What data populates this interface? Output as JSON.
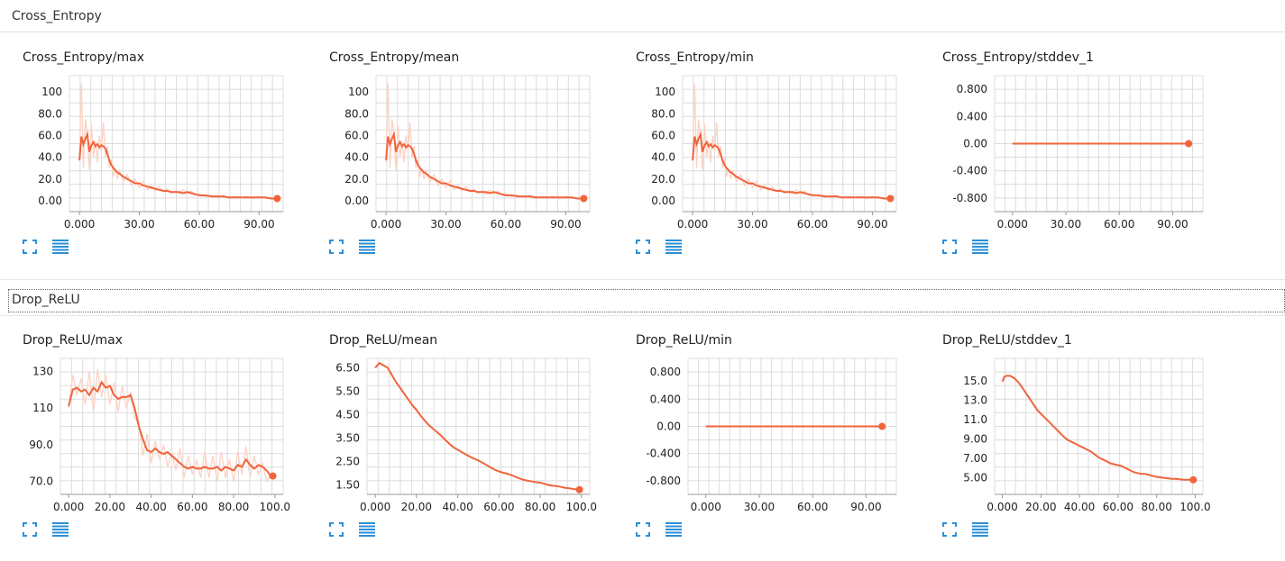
{
  "sections": [
    {
      "name": "Cross_Entropy",
      "cards": [
        {
          "title": "Cross_Entropy/max"
        },
        {
          "title": "Cross_Entropy/mean"
        },
        {
          "title": "Cross_Entropy/min"
        },
        {
          "title": "Cross_Entropy/stddev_1"
        }
      ]
    },
    {
      "name": "Drop_ReLU",
      "cards": [
        {
          "title": "Drop_ReLU/max"
        },
        {
          "title": "Drop_ReLU/mean"
        },
        {
          "title": "Drop_ReLU/min"
        },
        {
          "title": "Drop_ReLU/stddev_1"
        }
      ]
    }
  ],
  "colors": {
    "line": "#f0643c",
    "raw": "#fcd2c3",
    "grid": "#dcdcdc",
    "icon": "#2b8fd6"
  },
  "icons": {
    "expand": "fullscreen-icon",
    "data": "data-table-icon"
  },
  "chart_data": [
    {
      "type": "line",
      "title": "Cross_Entropy/max",
      "xlim": [
        -5,
        102
      ],
      "ylim": [
        -10,
        115
      ],
      "xticks": [
        "0.000",
        "30.00",
        "60.00",
        "90.00"
      ],
      "xtick_values": [
        0,
        30,
        60,
        90
      ],
      "yticks": [
        "100",
        "80.0",
        "60.0",
        "40.0",
        "20.0",
        "0.00"
      ],
      "ytick_values": [
        100,
        80,
        60,
        40,
        20,
        0
      ],
      "x": [
        0,
        1,
        2,
        3,
        4,
        5,
        6,
        7,
        8,
        9,
        10,
        11,
        12,
        13,
        14,
        15,
        16,
        17,
        18,
        19,
        20,
        22,
        24,
        26,
        28,
        30,
        32,
        34,
        36,
        38,
        40,
        42,
        44,
        46,
        48,
        50,
        52,
        54,
        56,
        58,
        60,
        63,
        66,
        69,
        72,
        75,
        78,
        81,
        84,
        87,
        90,
        93,
        96,
        99
      ],
      "y": [
        37,
        59,
        52,
        57,
        61,
        45,
        51,
        54,
        50,
        52,
        49,
        51,
        50,
        48,
        43,
        37,
        33,
        30,
        28,
        26,
        25,
        22,
        20,
        18,
        16,
        16,
        14,
        13,
        12,
        11,
        10,
        9,
        9,
        8,
        8,
        8,
        7,
        8,
        7,
        6,
        5,
        5,
        4,
        4,
        4,
        3,
        3,
        3,
        3,
        3,
        3,
        3,
        2,
        2
      ],
      "raw_y": [
        37,
        108,
        30,
        75,
        60,
        28,
        70,
        40,
        55,
        35,
        60,
        45,
        72,
        40,
        50,
        30,
        38,
        22,
        30,
        20,
        28,
        18,
        24,
        14,
        20,
        12,
        18,
        10,
        14,
        9,
        13,
        8,
        11,
        7,
        9,
        6,
        10,
        7,
        9,
        5,
        6,
        4,
        5,
        3,
        5,
        2,
        4,
        3,
        4,
        2,
        4,
        2,
        3,
        2
      ]
    },
    {
      "type": "line",
      "title": "Cross_Entropy/mean",
      "xlim": [
        -5,
        102
      ],
      "ylim": [
        -10,
        115
      ],
      "xticks": [
        "0.000",
        "30.00",
        "60.00",
        "90.00"
      ],
      "xtick_values": [
        0,
        30,
        60,
        90
      ],
      "yticks": [
        "100",
        "80.0",
        "60.0",
        "40.0",
        "20.0",
        "0.00"
      ],
      "ytick_values": [
        100,
        80,
        60,
        40,
        20,
        0
      ],
      "x": [
        0,
        1,
        2,
        3,
        4,
        5,
        6,
        7,
        8,
        9,
        10,
        11,
        12,
        13,
        14,
        15,
        16,
        17,
        18,
        19,
        20,
        22,
        24,
        26,
        28,
        30,
        32,
        34,
        36,
        38,
        40,
        42,
        44,
        46,
        48,
        50,
        52,
        54,
        56,
        58,
        60,
        63,
        66,
        69,
        72,
        75,
        78,
        81,
        84,
        87,
        90,
        93,
        96,
        99
      ],
      "y": [
        37,
        59,
        52,
        57,
        61,
        45,
        51,
        54,
        50,
        52,
        49,
        51,
        50,
        48,
        43,
        37,
        33,
        30,
        28,
        26,
        25,
        22,
        20,
        18,
        16,
        16,
        14,
        13,
        12,
        11,
        10,
        9,
        9,
        8,
        8,
        8,
        7,
        8,
        7,
        6,
        5,
        5,
        4,
        4,
        4,
        3,
        3,
        3,
        3,
        3,
        3,
        3,
        2,
        2
      ],
      "raw_y": [
        37,
        108,
        30,
        75,
        60,
        28,
        70,
        40,
        55,
        35,
        60,
        45,
        72,
        40,
        50,
        30,
        38,
        22,
        30,
        20,
        28,
        18,
        24,
        14,
        20,
        12,
        18,
        10,
        14,
        9,
        13,
        8,
        11,
        7,
        9,
        6,
        10,
        7,
        9,
        5,
        6,
        4,
        5,
        3,
        5,
        2,
        4,
        3,
        4,
        2,
        4,
        2,
        3,
        2
      ]
    },
    {
      "type": "line",
      "title": "Cross_Entropy/min",
      "xlim": [
        -5,
        102
      ],
      "ylim": [
        -10,
        115
      ],
      "xticks": [
        "0.000",
        "30.00",
        "60.00",
        "90.00"
      ],
      "xtick_values": [
        0,
        30,
        60,
        90
      ],
      "yticks": [
        "100",
        "80.0",
        "60.0",
        "40.0",
        "20.0",
        "0.00"
      ],
      "ytick_values": [
        100,
        80,
        60,
        40,
        20,
        0
      ],
      "x": [
        0,
        1,
        2,
        3,
        4,
        5,
        6,
        7,
        8,
        9,
        10,
        11,
        12,
        13,
        14,
        15,
        16,
        17,
        18,
        19,
        20,
        22,
        24,
        26,
        28,
        30,
        32,
        34,
        36,
        38,
        40,
        42,
        44,
        46,
        48,
        50,
        52,
        54,
        56,
        58,
        60,
        63,
        66,
        69,
        72,
        75,
        78,
        81,
        84,
        87,
        90,
        93,
        96,
        99
      ],
      "y": [
        37,
        59,
        52,
        57,
        61,
        45,
        51,
        54,
        50,
        52,
        49,
        51,
        50,
        48,
        43,
        37,
        33,
        30,
        28,
        26,
        25,
        22,
        20,
        18,
        16,
        16,
        14,
        13,
        12,
        11,
        10,
        9,
        9,
        8,
        8,
        8,
        7,
        8,
        7,
        6,
        5,
        5,
        4,
        4,
        4,
        3,
        3,
        3,
        3,
        3,
        3,
        3,
        2,
        2
      ],
      "raw_y": [
        37,
        108,
        30,
        75,
        60,
        28,
        70,
        40,
        55,
        35,
        60,
        45,
        72,
        40,
        50,
        30,
        38,
        22,
        30,
        20,
        28,
        18,
        24,
        14,
        20,
        12,
        18,
        10,
        14,
        9,
        13,
        8,
        11,
        7,
        9,
        6,
        10,
        7,
        9,
        5,
        6,
        4,
        5,
        3,
        5,
        2,
        4,
        3,
        4,
        2,
        4,
        2,
        3,
        2
      ]
    },
    {
      "type": "line",
      "title": "Cross_Entropy/stddev_1",
      "xlim": [
        -10,
        107
      ],
      "ylim": [
        -1,
        1
      ],
      "xticks": [
        "0.000",
        "30.00",
        "60.00",
        "90.00"
      ],
      "xtick_values": [
        0,
        30,
        60,
        90
      ],
      "yticks": [
        "0.800",
        "0.400",
        "0.00",
        "-0.400",
        "-0.800"
      ],
      "ytick_values": [
        0.8,
        0.4,
        0,
        -0.4,
        -0.8
      ],
      "x": [
        0,
        99
      ],
      "y": [
        0,
        0
      ],
      "raw_y": [
        0,
        0
      ]
    },
    {
      "type": "line",
      "title": "Drop_ReLU/max",
      "xlim": [
        -4,
        104
      ],
      "ylim": [
        63,
        137
      ],
      "xticks": [
        "0.000",
        "20.00",
        "40.00",
        "60.00",
        "80.00",
        "100.0"
      ],
      "xtick_values": [
        0,
        20,
        40,
        60,
        80,
        100
      ],
      "yticks": [
        "130",
        "110",
        "90.0",
        "70.0"
      ],
      "ytick_values": [
        130,
        110,
        90,
        70
      ],
      "x": [
        0,
        2,
        4,
        6,
        8,
        10,
        12,
        14,
        16,
        18,
        20,
        22,
        24,
        26,
        28,
        30,
        32,
        34,
        36,
        38,
        40,
        42,
        44,
        46,
        48,
        50,
        52,
        54,
        56,
        58,
        60,
        62,
        64,
        66,
        68,
        70,
        72,
        74,
        76,
        78,
        80,
        82,
        84,
        86,
        88,
        90,
        92,
        94,
        96,
        98,
        99
      ],
      "y": [
        111,
        120,
        121,
        119,
        120,
        117,
        121,
        119,
        124,
        121,
        122,
        117,
        115,
        116,
        116,
        117,
        110,
        100,
        93,
        87,
        86,
        88,
        86,
        85,
        86,
        84,
        82,
        80,
        78,
        77,
        78,
        77,
        77,
        78,
        77,
        77,
        78,
        76,
        78,
        77,
        76,
        79,
        78,
        82,
        79,
        77,
        79,
        78,
        76,
        73,
        73
      ],
      "raw_y": [
        110,
        128,
        117,
        126,
        112,
        130,
        108,
        131,
        116,
        128,
        112,
        124,
        108,
        122,
        110,
        119,
        104,
        103,
        84,
        96,
        80,
        92,
        82,
        90,
        78,
        86,
        76,
        88,
        72,
        84,
        74,
        82,
        72,
        86,
        72,
        84,
        70,
        86,
        72,
        82,
        70,
        86,
        74,
        89,
        72,
        84,
        74,
        80,
        70,
        74,
        73
      ]
    },
    {
      "type": "line",
      "title": "Drop_ReLU/mean",
      "xlim": [
        -4,
        104
      ],
      "ylim": [
        1.1,
        6.9
      ],
      "xticks": [
        "0.000",
        "20.00",
        "40.00",
        "60.00",
        "80.00",
        "100.0"
      ],
      "xtick_values": [
        0,
        20,
        40,
        60,
        80,
        100
      ],
      "yticks": [
        "6.50",
        "5.50",
        "4.50",
        "3.50",
        "2.50",
        "1.50"
      ],
      "ytick_values": [
        6.5,
        5.5,
        4.5,
        3.5,
        2.5,
        1.5
      ],
      "x": [
        0,
        2,
        4,
        6,
        8,
        10,
        12,
        14,
        16,
        18,
        20,
        22,
        24,
        26,
        28,
        30,
        32,
        34,
        36,
        38,
        40,
        42,
        44,
        46,
        48,
        50,
        52,
        54,
        56,
        58,
        60,
        62,
        64,
        66,
        68,
        70,
        72,
        74,
        76,
        78,
        80,
        82,
        84,
        86,
        88,
        90,
        92,
        94,
        96,
        98,
        99
      ],
      "y": [
        6.5,
        6.7,
        6.6,
        6.5,
        6.2,
        5.9,
        5.65,
        5.4,
        5.15,
        4.9,
        4.7,
        4.45,
        4.25,
        4.05,
        3.9,
        3.75,
        3.6,
        3.42,
        3.25,
        3.1,
        3.0,
        2.9,
        2.8,
        2.7,
        2.62,
        2.55,
        2.45,
        2.35,
        2.25,
        2.15,
        2.08,
        2.02,
        1.98,
        1.92,
        1.85,
        1.78,
        1.72,
        1.68,
        1.65,
        1.62,
        1.6,
        1.55,
        1.5,
        1.47,
        1.45,
        1.42,
        1.38,
        1.36,
        1.33,
        1.31,
        1.3
      ],
      "raw_y": []
    },
    {
      "type": "line",
      "title": "Drop_ReLU/min",
      "xlim": [
        -10,
        107
      ],
      "ylim": [
        -1,
        1
      ],
      "xticks": [
        "0.000",
        "30.00",
        "60.00",
        "90.00"
      ],
      "xtick_values": [
        0,
        30,
        60,
        90
      ],
      "yticks": [
        "0.800",
        "0.400",
        "0.00",
        "-0.400",
        "-0.800"
      ],
      "ytick_values": [
        0.8,
        0.4,
        0,
        -0.4,
        -0.8
      ],
      "x": [
        0,
        99
      ],
      "y": [
        0,
        0
      ],
      "raw_y": [
        0,
        0
      ]
    },
    {
      "type": "line",
      "title": "Drop_ReLU/stddev_1",
      "xlim": [
        -4,
        104
      ],
      "ylim": [
        3.3,
        17.3
      ],
      "xticks": [
        "0.000",
        "20.00",
        "40.00",
        "60.00",
        "80.00",
        "100.0"
      ],
      "xtick_values": [
        0,
        20,
        40,
        60,
        80,
        100
      ],
      "yticks": [
        "15.0",
        "13.0",
        "11.0",
        "9.00",
        "7.00",
        "5.00"
      ],
      "ytick_values": [
        15,
        13,
        11,
        9,
        7,
        5
      ],
      "x": [
        0,
        1,
        2,
        4,
        6,
        8,
        10,
        12,
        14,
        16,
        18,
        20,
        22,
        24,
        26,
        28,
        30,
        32,
        34,
        36,
        38,
        40,
        42,
        44,
        46,
        48,
        50,
        52,
        54,
        56,
        58,
        60,
        62,
        64,
        66,
        68,
        70,
        72,
        74,
        76,
        78,
        80,
        82,
        84,
        86,
        88,
        90,
        92,
        94,
        96,
        98,
        99
      ],
      "y": [
        14.9,
        15.4,
        15.5,
        15.5,
        15.3,
        14.9,
        14.4,
        13.8,
        13.2,
        12.6,
        12.0,
        11.6,
        11.2,
        10.8,
        10.4,
        10.0,
        9.6,
        9.2,
        8.9,
        8.7,
        8.5,
        8.3,
        8.1,
        7.9,
        7.7,
        7.4,
        7.1,
        6.9,
        6.7,
        6.5,
        6.4,
        6.3,
        6.2,
        6.0,
        5.8,
        5.6,
        5.5,
        5.4,
        5.4,
        5.3,
        5.2,
        5.1,
        5.05,
        5.0,
        4.95,
        4.9,
        4.9,
        4.85,
        4.8,
        4.8,
        4.8,
        4.8
      ],
      "raw_y": []
    }
  ]
}
